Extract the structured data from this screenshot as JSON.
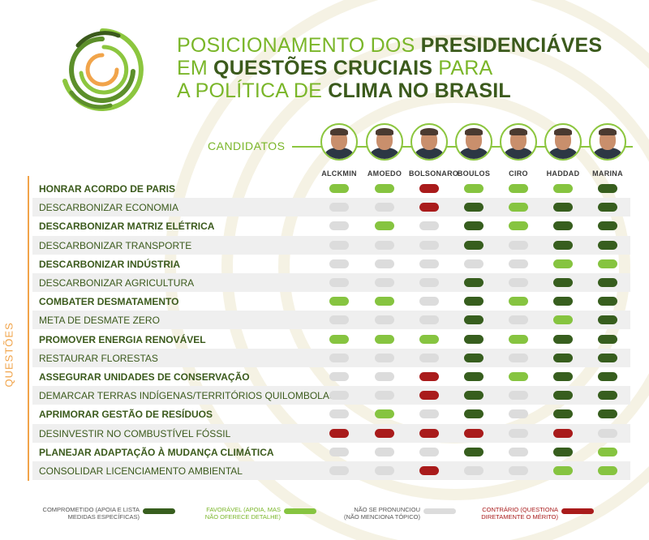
{
  "title": {
    "line1": {
      "a": "POSICIONAMENTO DOS ",
      "b": "PRESIDENCIÁVES"
    },
    "line2": {
      "a": "EM ",
      "b": "QUESTÕES CRUCIAIS",
      "c": " PARA"
    },
    "line3": {
      "a": "A POLÍTICA DE ",
      "b": "CLIMA NO BRASIL"
    }
  },
  "candidates_label": "CANDIDATOS",
  "questions_label": "QUESTÕES",
  "colors": {
    "title_light": "#7ab629",
    "title_dark": "#3b5a1c",
    "accent_orange": "#f1a44a",
    "C": "#375e1e",
    "F": "#86c440",
    "N": "#dcdcdc",
    "X": "#a91b1b"
  },
  "chart_data": {
    "type": "table",
    "candidates": [
      "ALCKMIN",
      "AMOEDO",
      "BOLSONARO",
      "BOULOS",
      "CIRO",
      "HADDAD",
      "MARINA"
    ],
    "categories": [
      "COMPROMETIDO (APOIA E LISTA MEDIDAS ESPECÍFICAS)",
      "FAVORÁVEL (APOIA, MAS NÃO OFERECE DETALHE)",
      "NÃO SE PRONUNCIOU (NÃO MENCIONA TÓPICO)",
      "CONTRÁRIO (QUESTIONA DIRETAMENTE O MÉRITO)"
    ],
    "legend": [
      {
        "code": "C",
        "line1": "COMPROMETIDO (APOIA E LISTA",
        "line2": "MEDIDAS ESPECÍFICAS)"
      },
      {
        "code": "F",
        "line1": "FAVORÁVEL (APOIA, MAS",
        "line2": "NÃO OFERECE DETALHE)"
      },
      {
        "code": "N",
        "line1": "NÃO SE PRONUNCIOU",
        "line2": "(NÃO MENCIONA TÓPICO)"
      },
      {
        "code": "X",
        "line1": "CONTRÁRIO (QUESTIONA",
        "line2": "DIRETAMENTE O MÉRITO)"
      }
    ],
    "rows": [
      {
        "label": "HONRAR ACORDO DE PARIS",
        "bold": true,
        "values": [
          "F",
          "F",
          "X",
          "F",
          "F",
          "F",
          "C"
        ]
      },
      {
        "label": "DESCARBONIZAR ECONOMIA",
        "bold": false,
        "values": [
          "N",
          "N",
          "X",
          "C",
          "F",
          "C",
          "C"
        ]
      },
      {
        "label": "DESCARBONIZAR MATRIZ ELÉTRICA",
        "bold": true,
        "values": [
          "N",
          "F",
          "N",
          "C",
          "F",
          "C",
          "C"
        ]
      },
      {
        "label": "DESCARBONIZAR TRANSPORTE",
        "bold": false,
        "values": [
          "N",
          "N",
          "N",
          "C",
          "N",
          "C",
          "C"
        ]
      },
      {
        "label": "DESCARBONIZAR INDÚSTRIA",
        "bold": true,
        "values": [
          "N",
          "N",
          "N",
          "N",
          "N",
          "F",
          "F"
        ]
      },
      {
        "label": "DESCARBONIZAR AGRICULTURA",
        "bold": false,
        "values": [
          "N",
          "N",
          "N",
          "C",
          "N",
          "C",
          "C"
        ]
      },
      {
        "label": "COMBATER DESMATAMENTO",
        "bold": true,
        "values": [
          "F",
          "F",
          "N",
          "C",
          "F",
          "C",
          "C"
        ]
      },
      {
        "label": "META DE DESMATE ZERO",
        "bold": false,
        "values": [
          "N",
          "N",
          "N",
          "C",
          "N",
          "F",
          "C"
        ]
      },
      {
        "label": "PROMOVER ENERGIA RENOVÁVEL",
        "bold": true,
        "values": [
          "F",
          "F",
          "F",
          "C",
          "F",
          "C",
          "C"
        ]
      },
      {
        "label": "RESTAURAR FLORESTAS",
        "bold": false,
        "values": [
          "N",
          "N",
          "N",
          "C",
          "N",
          "C",
          "C"
        ]
      },
      {
        "label": "ASSEGURAR UNIDADES DE CONSERVAÇÃO",
        "bold": true,
        "values": [
          "N",
          "N",
          "X",
          "C",
          "F",
          "C",
          "C"
        ]
      },
      {
        "label": "DEMARCAR TERRAS INDÍGENAS/TERRITÓRIOS QUILOMBOLAS",
        "bold": false,
        "values": [
          "N",
          "N",
          "X",
          "C",
          "N",
          "C",
          "C"
        ]
      },
      {
        "label": "APRIMORAR GESTÃO DE RESÍDUOS",
        "bold": true,
        "values": [
          "N",
          "F",
          "N",
          "C",
          "N",
          "C",
          "C"
        ]
      },
      {
        "label": "DESINVESTIR NO COMBUSTÍVEL FÓSSIL",
        "bold": false,
        "values": [
          "X",
          "X",
          "X",
          "X",
          "N",
          "X",
          "N"
        ]
      },
      {
        "label": "PLANEJAR ADAPTAÇÃO À MUDANÇA CLIMÁTICA",
        "bold": true,
        "values": [
          "N",
          "N",
          "N",
          "C",
          "N",
          "C",
          "F"
        ]
      },
      {
        "label": "CONSOLIDAR LICENCIAMENTO AMBIENTAL",
        "bold": false,
        "values": [
          "N",
          "N",
          "X",
          "N",
          "N",
          "F",
          "F"
        ]
      }
    ]
  }
}
